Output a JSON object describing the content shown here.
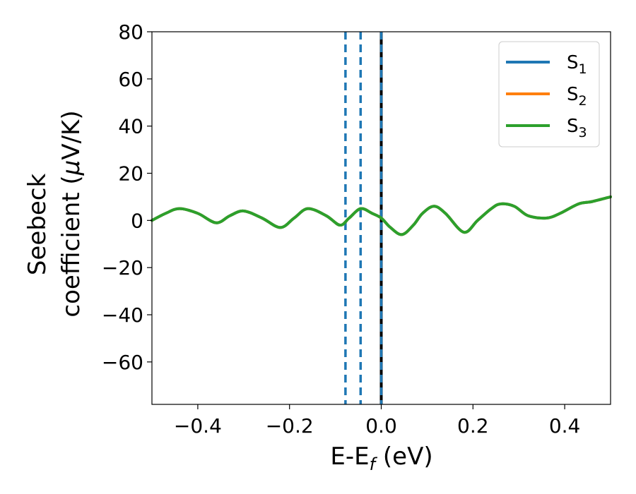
{
  "chart_data": {
    "type": "line",
    "xlabel": {
      "main": "E-E",
      "sub": "f",
      "unit": " (eV)"
    },
    "ylabel": {
      "line1": "Seebeck",
      "line2_text": "coefficient  (",
      "mu": "μ",
      "line2_unit": "V/K)"
    },
    "xlim": [
      -0.5,
      0.5
    ],
    "ylim": [
      -78,
      80
    ],
    "x_ticks": [
      -0.4,
      -0.2,
      0.0,
      0.2,
      0.4
    ],
    "x_tick_labels": [
      "−0.4",
      "−0.2",
      "0.0",
      "0.2",
      "0.4"
    ],
    "y_ticks": [
      80,
      60,
      40,
      20,
      0,
      -20,
      -40,
      -60
    ],
    "y_tick_labels": [
      "80",
      "60",
      "40",
      "20",
      "0",
      "−20",
      "−40",
      "−60"
    ],
    "grid": false,
    "legend_position": "top-right",
    "series": [
      {
        "name": "S1",
        "label_main": "S",
        "label_sub": "1",
        "color": "#1f77b4",
        "x": [
          -0.5,
          -0.47,
          -0.44,
          -0.4,
          -0.36,
          -0.33,
          -0.3,
          -0.26,
          -0.22,
          -0.19,
          -0.16,
          -0.12,
          -0.09,
          -0.07,
          -0.045,
          -0.02,
          0.0,
          0.02,
          0.045,
          0.07,
          0.09,
          0.115,
          0.14,
          0.18,
          0.21,
          0.24,
          0.26,
          0.29,
          0.32,
          0.36,
          0.39,
          0.43,
          0.46,
          0.5
        ],
        "y": [
          0,
          3,
          5,
          3,
          -1,
          2,
          4,
          1,
          -3,
          1,
          5,
          2,
          -2,
          1,
          5,
          3,
          1,
          -3,
          -6,
          -2,
          3,
          6,
          3,
          -5,
          0,
          5,
          7,
          6,
          2,
          1,
          3,
          7,
          8,
          10
        ]
      },
      {
        "name": "S2",
        "label_main": "S",
        "label_sub": "2",
        "color": "#ff7f0e",
        "x": [
          -0.5,
          -0.47,
          -0.44,
          -0.4,
          -0.36,
          -0.33,
          -0.3,
          -0.26,
          -0.22,
          -0.19,
          -0.16,
          -0.12,
          -0.09,
          -0.07,
          -0.045,
          -0.02,
          0.0,
          0.02,
          0.045,
          0.07,
          0.09,
          0.115,
          0.14,
          0.18,
          0.21,
          0.24,
          0.26,
          0.29,
          0.32,
          0.36,
          0.39,
          0.43,
          0.46,
          0.5
        ],
        "y": [
          0,
          3,
          5,
          3,
          -1,
          2,
          4,
          1,
          -3,
          1,
          5,
          2,
          -2,
          1,
          5,
          3,
          1,
          -3,
          -6,
          -2,
          3,
          6,
          3,
          -5,
          0,
          5,
          7,
          6,
          2,
          1,
          3,
          7,
          8,
          10
        ]
      },
      {
        "name": "S3",
        "label_main": "S",
        "label_sub": "3",
        "color": "#2ca02c",
        "x": [
          -0.5,
          -0.47,
          -0.44,
          -0.4,
          -0.36,
          -0.33,
          -0.3,
          -0.26,
          -0.22,
          -0.19,
          -0.16,
          -0.12,
          -0.09,
          -0.07,
          -0.045,
          -0.02,
          0.0,
          0.02,
          0.045,
          0.07,
          0.09,
          0.115,
          0.14,
          0.18,
          0.21,
          0.24,
          0.26,
          0.29,
          0.32,
          0.36,
          0.39,
          0.43,
          0.46,
          0.5
        ],
        "y": [
          0,
          3,
          5,
          3,
          -1,
          2,
          4,
          1,
          -3,
          1,
          5,
          2,
          -2,
          1,
          5,
          3,
          1,
          -3,
          -6,
          -2,
          3,
          6,
          3,
          -5,
          0,
          5,
          7,
          6,
          2,
          1,
          3,
          7,
          8,
          10
        ]
      }
    ],
    "vlines": [
      {
        "x": -0.078,
        "color": "#1f77b4",
        "style": "dashed"
      },
      {
        "x": -0.045,
        "color": "#1f77b4",
        "style": "dashed"
      },
      {
        "x": 0.0,
        "color": "#000000",
        "style": "solid"
      },
      {
        "x": 0.0,
        "color": "#1f77b4",
        "style": "dashed"
      }
    ]
  }
}
